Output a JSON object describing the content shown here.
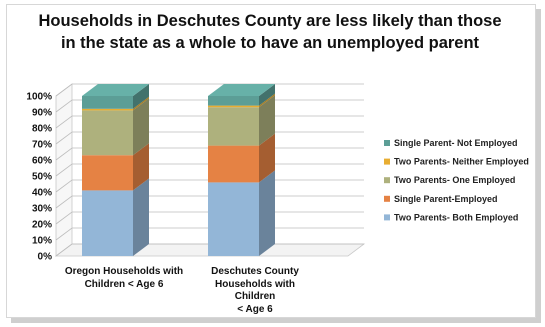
{
  "chart_data": {
    "type": "bar",
    "stacked": true,
    "three_d": true,
    "title": "Households in Deschutes County are less likely than those in the state as a whole to have an unemployed parent",
    "title_lines": [
      "Households in Deschutes County are less likely than those",
      "in the state as a whole to have an unemployed parent"
    ],
    "categories": [
      "Oregon Households with Children < Age 6",
      "Deschutes County Households with Children < Age 6"
    ],
    "category_lines": [
      [
        "Oregon Households with",
        "Children < Age 6"
      ],
      [
        "Deschutes County",
        "Households with Children",
        "< Age 6"
      ]
    ],
    "ylim": [
      0,
      100
    ],
    "y_ticks": [
      "0%",
      "10%",
      "20%",
      "30%",
      "40%",
      "50%",
      "60%",
      "70%",
      "80%",
      "90%",
      "100%"
    ],
    "legend_position": "right",
    "grid": true,
    "series": [
      {
        "name": "Two Parents- Both Employed",
        "color": "#93b6d7",
        "values": [
          41,
          46
        ]
      },
      {
        "name": "Single Parent-Employed",
        "color": "#e58244",
        "values": [
          22,
          23
        ]
      },
      {
        "name": "Two Parents- One Employed",
        "color": "#aeb17d",
        "values": [
          28,
          24
        ]
      },
      {
        "name": "Two Parents- Neither Employed",
        "color": "#e8ad32",
        "values": [
          1,
          1
        ]
      },
      {
        "name": "Single Parent- Not Employed",
        "color": "#5c9e96",
        "values": [
          8,
          6
        ]
      }
    ]
  }
}
